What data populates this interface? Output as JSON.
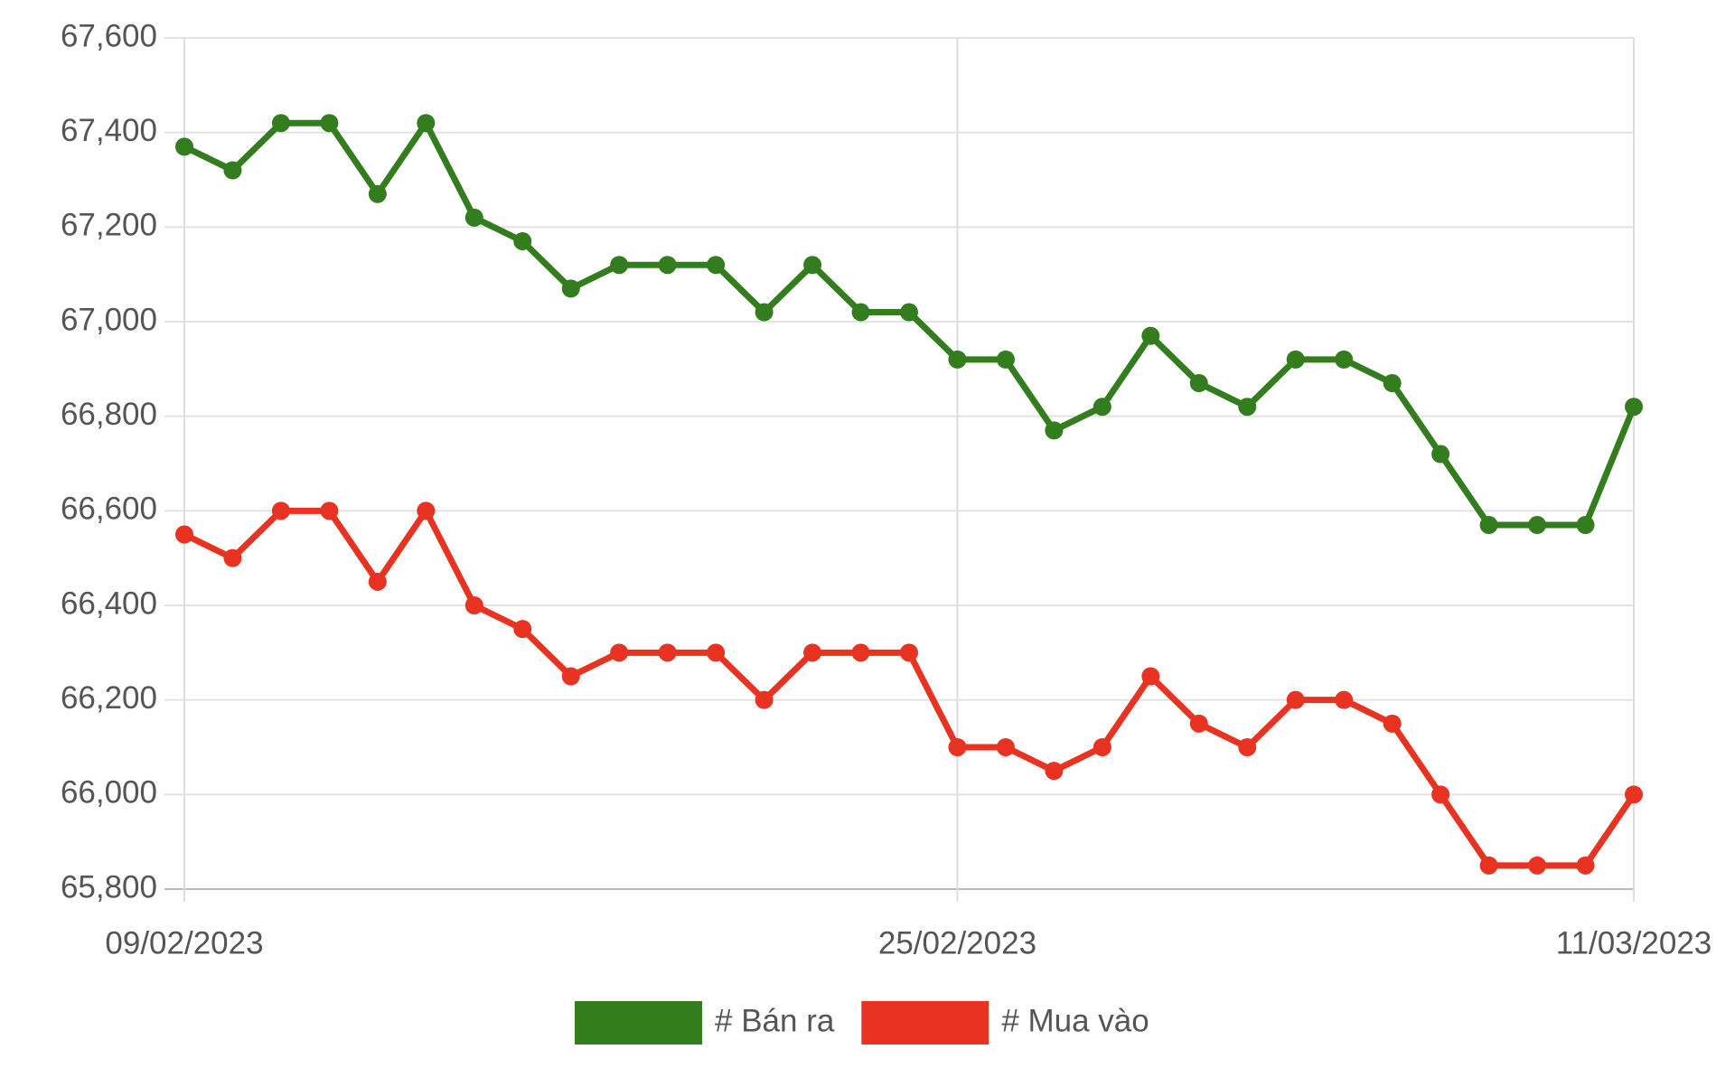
{
  "chart_data": {
    "type": "line",
    "categories": [
      "09/02/2023",
      null,
      null,
      null,
      null,
      null,
      null,
      null,
      null,
      null,
      null,
      null,
      null,
      null,
      null,
      null,
      "25/02/2023",
      null,
      null,
      null,
      null,
      null,
      null,
      null,
      null,
      null,
      null,
      null,
      null,
      null,
      "11/03/2023"
    ],
    "series": [
      {
        "name": "# Bán ra",
        "color": "#337d1e",
        "values": [
          67370,
          67320,
          67420,
          67420,
          67270,
          67420,
          67220,
          67170,
          67070,
          67120,
          67120,
          67120,
          67020,
          67120,
          67020,
          67020,
          66920,
          66920,
          66770,
          66820,
          66970,
          66870,
          66820,
          66920,
          66920,
          66870,
          66720,
          66570,
          66570,
          66570,
          66820
        ]
      },
      {
        "name": "# Mua vào",
        "color": "#e83323",
        "values": [
          66550,
          66500,
          66600,
          66600,
          66450,
          66600,
          66400,
          66350,
          66250,
          66300,
          66300,
          66300,
          66200,
          66300,
          66300,
          66300,
          66100,
          66100,
          66050,
          66100,
          66250,
          66150,
          66100,
          66200,
          66200,
          66150,
          66000,
          65850,
          65850,
          65850,
          66000
        ]
      }
    ],
    "ylim": [
      65800,
      67600
    ],
    "yticks": [
      {
        "value": 65800,
        "label": "65,800"
      },
      {
        "value": 66000,
        "label": "66,000"
      },
      {
        "value": 66200,
        "label": "66,200"
      },
      {
        "value": 66400,
        "label": "66,400"
      },
      {
        "value": 66600,
        "label": "66,600"
      },
      {
        "value": 66800,
        "label": "66,800"
      },
      {
        "value": 67000,
        "label": "67,000"
      },
      {
        "value": 67200,
        "label": "67,200"
      },
      {
        "value": 67400,
        "label": "67,400"
      },
      {
        "value": 67600,
        "label": "67,600"
      }
    ],
    "grid": true,
    "legend": "bottom"
  }
}
